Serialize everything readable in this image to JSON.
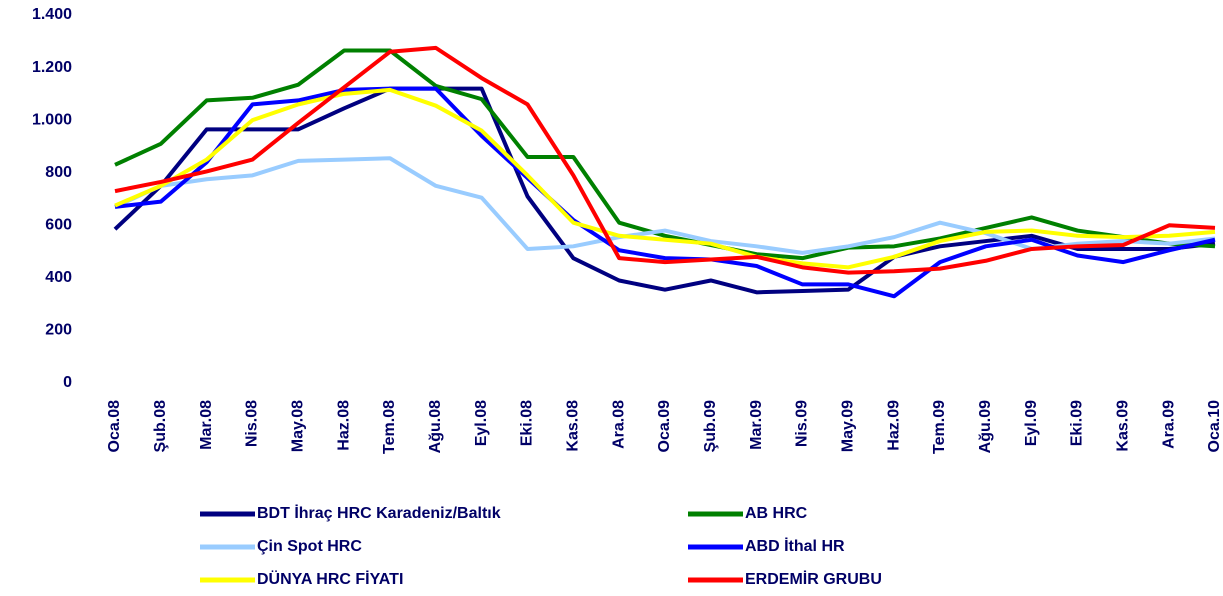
{
  "chart_data": {
    "type": "line",
    "categories": [
      "Oca.08",
      "Şub.08",
      "Mar.08",
      "Nis.08",
      "May.08",
      "Haz.08",
      "Tem.08",
      "Ağu.08",
      "Eyl.08",
      "Eki.08",
      "Kas.08",
      "Ara.08",
      "Oca.09",
      "Şub.09",
      "Mar.09",
      "Nis.09",
      "May.09",
      "Haz.09",
      "Tem.09",
      "Ağu.09",
      "Eyl.09",
      "Eki.09",
      "Kas.09",
      "Ara.09",
      "Oca.10"
    ],
    "series": [
      {
        "name": "BDT İhraç HRC Karadeniz/Baltık",
        "color": "#000080",
        "values": [
          585,
          750,
          965,
          965,
          965,
          1045,
          1120,
          1120,
          1120,
          710,
          475,
          390,
          355,
          390,
          345,
          350,
          355,
          480,
          520,
          540,
          560,
          510,
          510,
          510,
          530
        ]
      },
      {
        "name": "AB HRC",
        "color": "#008000",
        "values": [
          830,
          910,
          1075,
          1085,
          1135,
          1265,
          1265,
          1130,
          1080,
          860,
          860,
          610,
          560,
          525,
          490,
          475,
          515,
          520,
          550,
          590,
          630,
          580,
          555,
          530,
          520
        ]
      },
      {
        "name": "Çin Spot HRC",
        "color": "#99ccff",
        "values": [
          670,
          750,
          775,
          790,
          845,
          850,
          855,
          750,
          705,
          510,
          520,
          555,
          580,
          540,
          520,
          495,
          520,
          555,
          610,
          570,
          510,
          530,
          540,
          530,
          550
        ]
      },
      {
        "name": "ABD İthal HR",
        "color": "#0000ff",
        "values": [
          670,
          690,
          840,
          1060,
          1075,
          1115,
          1120,
          1120,
          940,
          780,
          620,
          505,
          475,
          470,
          445,
          375,
          375,
          330,
          460,
          520,
          545,
          485,
          460,
          505,
          545
        ]
      },
      {
        "name": "DÜNYA HRC FİYATI",
        "color": "#ffff00",
        "values": [
          675,
          750,
          850,
          1000,
          1060,
          1100,
          1115,
          1055,
          960,
          790,
          610,
          560,
          545,
          530,
          480,
          455,
          440,
          480,
          540,
          575,
          580,
          560,
          555,
          560,
          575
        ]
      },
      {
        "name": "ERDEMİR GRUBU",
        "color": "#ff0000",
        "values": [
          730,
          765,
          805,
          850,
          990,
          1125,
          1260,
          1275,
          1160,
          1060,
          790,
          475,
          460,
          470,
          480,
          440,
          420,
          425,
          435,
          465,
          510,
          520,
          525,
          600,
          590
        ]
      }
    ],
    "ylim": [
      0,
      1400
    ],
    "yticks": [
      0,
      200,
      400,
      600,
      800,
      {
        "value": 1000,
        "label": "1.000"
      },
      {
        "value": 1200,
        "label": "1.200"
      },
      {
        "value": 1400,
        "label": "1.400"
      }
    ],
    "grid": false
  }
}
